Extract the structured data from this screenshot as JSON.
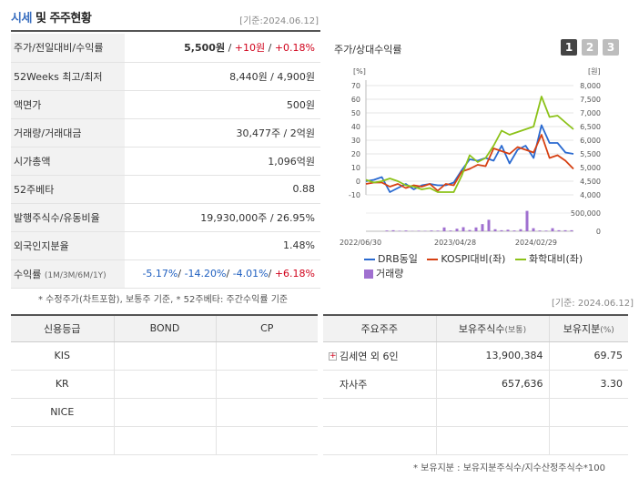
{
  "header": {
    "title_main": "시세",
    "title_rest": "및 주주현황",
    "date": "[기준:2024.06.12]"
  },
  "quote_rows": [
    {
      "label": "주가/전일대비/수익률",
      "price": "5,500원",
      "sep1": " / ",
      "change": "+10원",
      "sep2": " / ",
      "rate": "+0.18%"
    },
    {
      "label": "52Weeks 최고/최저",
      "value": "8,440원 / 4,900원"
    },
    {
      "label": "액면가",
      "value": "500원"
    },
    {
      "label": "거래량/거래대금",
      "value": "30,477주 / 2억원"
    },
    {
      "label": "시가총액",
      "value": "1,096억원"
    },
    {
      "label": "52주베타",
      "value": "0.88"
    },
    {
      "label": "발행주식수/유동비율",
      "value": "19,930,000주 / 26.95%"
    },
    {
      "label": "외국인지분율",
      "value": "1.48%"
    },
    {
      "label": "수익률",
      "label_sub": "(1M/3M/6M/1Y)",
      "r1": "-5.17%",
      "r2": "-14.20%",
      "r3": "-4.01%",
      "r4": "+6.18%"
    }
  ],
  "quote_note": "* 수정주가(차트포함), 보통주 기준, * 52주베타: 주간수익률 기준",
  "chart_panel": {
    "title": "주가/상대수익률",
    "tabs": [
      "1",
      "2",
      "3"
    ],
    "left_unit": "[%]",
    "right_unit": "[원]",
    "vol_right_ticks": [
      "500,000",
      "0"
    ]
  },
  "chart_data": {
    "type": "line",
    "x_tick_labels": [
      "2022/06/30",
      "2023/04/28",
      "2024/02/29"
    ],
    "left_axis": {
      "unit": "%",
      "ylim": [
        -10,
        70
      ],
      "ticks": [
        70,
        60,
        50,
        40,
        30,
        20,
        10,
        0,
        -10
      ]
    },
    "right_axis": {
      "unit": "원",
      "ylim": [
        4000,
        8000
      ],
      "ticks": [
        "8,000",
        "7,500",
        "7,000",
        "6,500",
        "6,000",
        "5,500",
        "5,000",
        "4,500",
        "4,000"
      ]
    },
    "series": [
      {
        "name": "DRB동일",
        "color": "#2a6ad0",
        "values": [
          0,
          1,
          3,
          -8,
          -5,
          -2,
          -6,
          -3,
          -2,
          -3,
          -3,
          -1,
          8,
          16,
          15,
          17,
          15,
          26,
          13,
          23,
          26,
          17,
          41,
          28,
          28,
          21,
          20
        ]
      },
      {
        "name": "KOSPI대비(좌)",
        "color": "#d64012",
        "values": [
          -2,
          -1,
          -1,
          -4,
          -2,
          -5,
          -3,
          -4,
          -2,
          -7,
          -2,
          -3,
          7,
          9,
          12,
          11,
          24,
          22,
          20,
          25,
          23,
          21,
          34,
          17,
          19,
          15,
          9
        ]
      },
      {
        "name": "화학대비(좌)",
        "color": "#8cc219",
        "values": [
          1,
          -1,
          0,
          2,
          0,
          -3,
          -4,
          -6,
          -5,
          -8,
          -8,
          -8,
          4,
          19,
          14,
          17,
          26,
          37,
          34,
          36,
          38,
          40,
          62,
          47,
          48,
          43,
          38
        ]
      }
    ],
    "volume": {
      "name": "거래량",
      "color": "#a070d0",
      "ylim": [
        0,
        1000000
      ],
      "values": [
        0,
        0,
        0,
        30000,
        40000,
        20000,
        30000,
        10000,
        20000,
        15000,
        30000,
        25000,
        150000,
        30000,
        100000,
        160000,
        50000,
        150000,
        280000,
        450000,
        80000,
        40000,
        60000,
        30000,
        80000,
        800000,
        120000,
        30000,
        25000,
        120000,
        40000,
        40000,
        40000
      ]
    }
  },
  "ratings_table": {
    "headers": [
      "신용등급",
      "BOND",
      "CP"
    ],
    "rows": [
      [
        "KIS",
        "",
        ""
      ],
      [
        "KR",
        "",
        ""
      ],
      [
        "NICE",
        "",
        ""
      ],
      [
        "",
        "",
        ""
      ]
    ]
  },
  "holders_date": "[기준: 2024.06.12]",
  "holders_table": {
    "h1": "주요주주",
    "h2": "보유주식수",
    "h2_sub": "(보통)",
    "h3": "보유지분",
    "h3_sub": "(%)",
    "rows": [
      {
        "name": "김세연 외 6인",
        "shares": "13,900,384",
        "pct": "69.75"
      },
      {
        "name": "자사주",
        "shares": "657,636",
        "pct": "3.30"
      },
      {
        "name": "",
        "shares": "",
        "pct": ""
      },
      {
        "name": "",
        "shares": "",
        "pct": ""
      }
    ]
  },
  "holders_note": "* 보유지분 : 보유지분주식수/지수산정주식수*100"
}
